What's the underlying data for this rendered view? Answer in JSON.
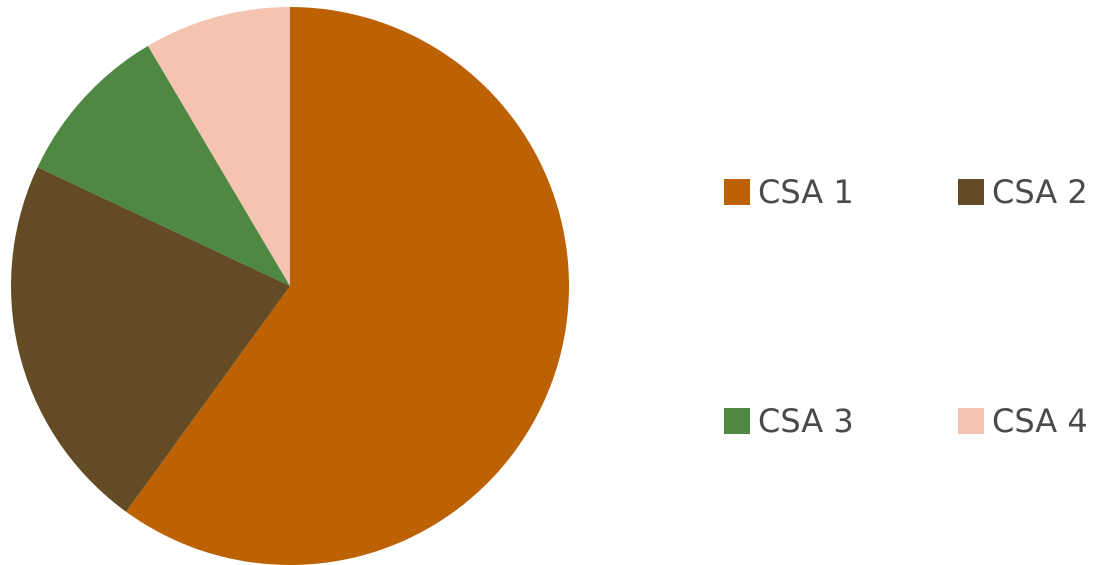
{
  "chart_data": {
    "type": "pie",
    "categories": [
      "CSA 1",
      "CSA 2",
      "CSA 3",
      "CSA 4"
    ],
    "values": [
      60,
      22,
      9.5,
      8.5
    ],
    "colors": [
      "#bc6104",
      "#634b26",
      "#4f8843",
      "#f4c4b0"
    ],
    "start_angle": "12 o'clock",
    "direction": "clockwise",
    "legend_position": "right",
    "legend": {
      "items": [
        {
          "label": "CSA 1",
          "color": "#bc6104"
        },
        {
          "label": "CSA 2",
          "color": "#634b26"
        },
        {
          "label": "CSA 3",
          "color": "#4f8843"
        },
        {
          "label": "CSA 4",
          "color": "#f4c4b0"
        }
      ]
    }
  }
}
